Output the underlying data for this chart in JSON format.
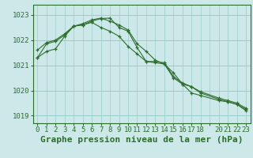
{
  "bg_color": "#cce8e8",
  "grid_color": "#99cccc",
  "line_color": "#2d6e2d",
  "marker_color": "#2d6e2d",
  "title": "Graphe pression niveau de la mer (hPa)",
  "ylim": [
    1018.7,
    1023.4
  ],
  "yticks": [
    1019,
    1020,
    1021,
    1022,
    1023
  ],
  "xlim": [
    -0.5,
    23.5
  ],
  "xtick_labels": [
    "0",
    "1",
    "2",
    "3",
    "4",
    "5",
    "6",
    "7",
    "8",
    "9",
    "10",
    "11",
    "12",
    "13",
    "14",
    "15",
    "16",
    "17",
    "18",
    "",
    "20",
    "21",
    "22",
    "23"
  ],
  "series1_x": [
    0,
    1,
    2,
    3,
    4,
    5,
    6,
    7,
    8,
    9,
    10,
    11,
    12,
    13,
    14,
    15,
    16,
    17,
    18,
    20,
    21,
    22,
    23
  ],
  "series1_y": [
    1021.3,
    1021.85,
    1021.95,
    1022.2,
    1022.55,
    1022.6,
    1022.7,
    1022.5,
    1022.35,
    1022.15,
    1021.75,
    1021.45,
    1021.15,
    1021.15,
    1021.1,
    1020.55,
    1020.3,
    1020.15,
    1019.95,
    1019.7,
    1019.6,
    1019.5,
    1019.3
  ],
  "series2_x": [
    0,
    1,
    2,
    3,
    4,
    5,
    6,
    7,
    8,
    9,
    10,
    11,
    12,
    13,
    14,
    15,
    16,
    17,
    18,
    20,
    21,
    22,
    23
  ],
  "series2_y": [
    1021.6,
    1021.9,
    1022.0,
    1022.25,
    1022.55,
    1022.65,
    1022.8,
    1022.87,
    1022.75,
    1022.6,
    1022.4,
    1021.85,
    1021.55,
    1021.2,
    1021.05,
    1020.7,
    1020.25,
    1019.9,
    1019.8,
    1019.6,
    1019.55,
    1019.45,
    1019.2
  ],
  "series3_x": [
    0,
    1,
    2,
    3,
    4,
    5,
    6,
    7,
    8,
    9,
    10,
    11,
    12,
    13,
    14,
    15,
    16,
    17,
    18,
    20,
    21,
    22,
    23
  ],
  "series3_y": [
    1021.3,
    1021.55,
    1021.65,
    1022.15,
    1022.55,
    1022.6,
    1022.75,
    1022.85,
    1022.87,
    1022.5,
    1022.35,
    1021.7,
    1021.15,
    1021.1,
    1021.05,
    1020.5,
    1020.25,
    1020.15,
    1019.9,
    1019.65,
    1019.55,
    1019.45,
    1019.25
  ],
  "title_fontsize": 8,
  "tick_fontsize": 6.5
}
